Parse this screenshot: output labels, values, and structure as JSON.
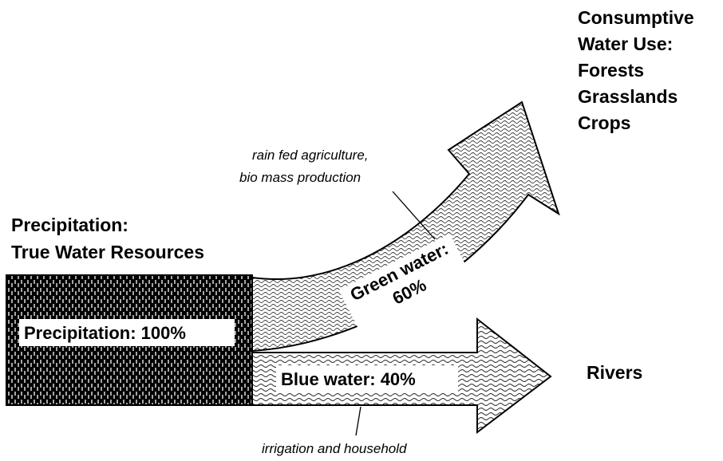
{
  "consumptive": {
    "lines": [
      "Consumptive",
      "Water Use:",
      "Forests",
      "Grasslands",
      "Crops"
    ]
  },
  "rivers": "Rivers",
  "green_note": {
    "lines": [
      "rain fed agriculture,",
      "bio mass production"
    ]
  },
  "precipitation_heading": {
    "lines": [
      "Precipitation:",
      "True Water Resources"
    ]
  },
  "precipitation_label": "Precipitation: 100%",
  "green_label": {
    "lines": [
      "Green water:",
      "60%"
    ]
  },
  "blue_label": "Blue water: 40%",
  "blue_note": "irrigation and household"
}
